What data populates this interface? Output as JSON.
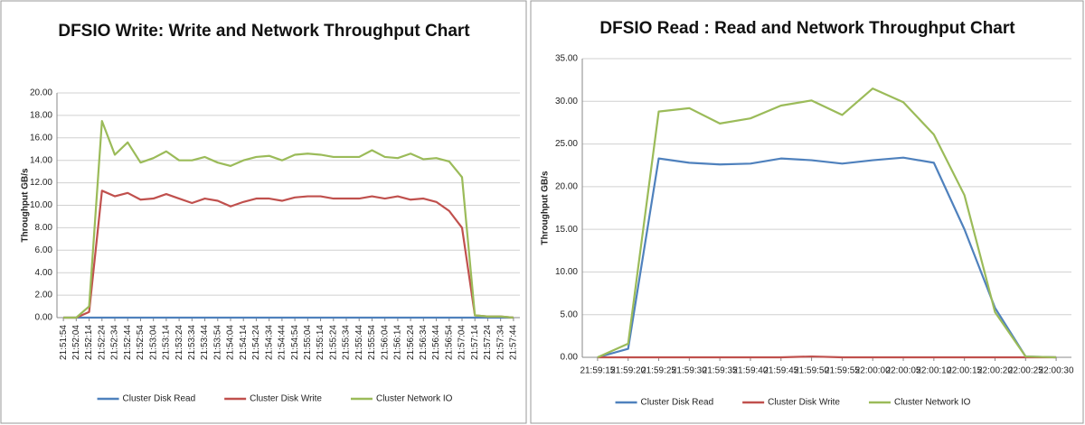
{
  "chart_data": [
    {
      "type": "line",
      "title": "DFSIO Write: Write and Network Throughput Chart",
      "y_label": "Throughput GB/s",
      "categories": [
        "21:51:54",
        "21:52:04",
        "21:52:14",
        "21:52:24",
        "21:52:34",
        "21:52:44",
        "21:52:54",
        "21:53:04",
        "21:53:14",
        "21:53:24",
        "21:53:34",
        "21:53:44",
        "21:53:54",
        "21:54:04",
        "21:54:14",
        "21:54:24",
        "21:54:34",
        "21:54:44",
        "21:54:54",
        "21:55:04",
        "21:55:14",
        "21:55:24",
        "21:55:34",
        "21:55:44",
        "21:55:54",
        "21:56:04",
        "21:56:14",
        "21:56:24",
        "21:56:34",
        "21:56:44",
        "21:56:54",
        "21:57:04",
        "21:57:14",
        "21:57:24",
        "21:57:34",
        "21:57:44"
      ],
      "series": [
        {
          "name": "Cluster Disk Read",
          "color": "#4f81bd",
          "values": [
            0,
            0,
            0,
            0,
            0,
            0,
            0,
            0,
            0,
            0,
            0,
            0,
            0,
            0,
            0,
            0,
            0,
            0,
            0,
            0,
            0,
            0,
            0,
            0,
            0,
            0,
            0,
            0,
            0,
            0,
            0,
            0,
            0,
            0,
            0,
            0
          ]
        },
        {
          "name": "Cluster Disk Write",
          "color": "#c0504d",
          "values": [
            0,
            0,
            0.5,
            11.3,
            10.8,
            11.1,
            10.5,
            10.6,
            11.0,
            10.6,
            10.2,
            10.6,
            10.4,
            9.9,
            10.3,
            10.6,
            10.6,
            10.4,
            10.7,
            10.8,
            10.8,
            10.6,
            10.6,
            10.6,
            10.8,
            10.6,
            10.8,
            10.5,
            10.6,
            10.3,
            9.5,
            8.0,
            0.2,
            0.1,
            0.1,
            0.0
          ]
        },
        {
          "name": "Cluster Network IO",
          "color": "#9bbb59",
          "values": [
            0,
            0,
            1.0,
            17.5,
            14.5,
            15.6,
            13.8,
            14.2,
            14.8,
            14.0,
            14.0,
            14.3,
            13.8,
            13.5,
            14.0,
            14.3,
            14.4,
            14.0,
            14.5,
            14.6,
            14.5,
            14.3,
            14.3,
            14.3,
            14.9,
            14.3,
            14.2,
            14.6,
            14.1,
            14.2,
            13.9,
            12.5,
            0.2,
            0.1,
            0.1,
            0.0
          ]
        }
      ],
      "ylim": [
        0,
        20
      ],
      "yticks": [
        {
          "value": 0,
          "label": "0.00"
        },
        {
          "value": 2,
          "label": "2.00"
        },
        {
          "value": 4,
          "label": "4.00"
        },
        {
          "value": 6,
          "label": "6.00"
        },
        {
          "value": 8,
          "label": "8.00"
        },
        {
          "value": 10,
          "label": "10.00"
        },
        {
          "value": 12,
          "label": "12.00"
        },
        {
          "value": 14,
          "label": "14.00"
        },
        {
          "value": 16,
          "label": "16.00"
        },
        {
          "value": 18,
          "label": "18.00"
        },
        {
          "value": 20,
          "label": "20.00"
        }
      ],
      "grid": true,
      "legend": "bottom"
    },
    {
      "type": "line",
      "title": "DFSIO Read : Read and Network Throughput Chart",
      "y_label": "Throughput GB/s",
      "categories": [
        "21:59:15",
        "21:59:20",
        "21:59:25",
        "21:59:30",
        "21:59:35",
        "21:59:40",
        "21:59:45",
        "21:59:50",
        "21:59:55",
        "22:00:00",
        "22:00:05",
        "22:00:10",
        "22:00:15",
        "22:00:20",
        "22:00:25",
        "22:00:30"
      ],
      "series": [
        {
          "name": "Cluster Disk Read",
          "color": "#4f81bd",
          "values": [
            0,
            1.0,
            23.3,
            22.8,
            22.6,
            22.7,
            23.3,
            23.1,
            22.7,
            23.1,
            23.4,
            22.8,
            15.0,
            5.8,
            0.1,
            0
          ]
        },
        {
          "name": "Cluster Disk Write",
          "color": "#c0504d",
          "values": [
            0,
            0,
            0,
            0,
            0,
            0,
            0,
            0.1,
            0,
            0,
            0,
            0,
            0,
            0,
            0,
            0
          ]
        },
        {
          "name": "Cluster Network IO",
          "color": "#9bbb59",
          "values": [
            0,
            1.6,
            28.8,
            29.2,
            27.4,
            28.0,
            29.5,
            30.1,
            28.4,
            31.5,
            29.9,
            26.1,
            19.0,
            5.3,
            0.1,
            0.0
          ]
        }
      ],
      "ylim": [
        0,
        35
      ],
      "yticks": [
        {
          "value": 0,
          "label": "0.00"
        },
        {
          "value": 5,
          "label": "5.00"
        },
        {
          "value": 10,
          "label": "10.00"
        },
        {
          "value": 15,
          "label": "15.00"
        },
        {
          "value": 20,
          "label": "20.00"
        },
        {
          "value": 25,
          "label": "25.00"
        },
        {
          "value": 30,
          "label": "30.00"
        },
        {
          "value": 35,
          "label": "35.00"
        }
      ],
      "grid": true,
      "legend": "bottom"
    }
  ]
}
